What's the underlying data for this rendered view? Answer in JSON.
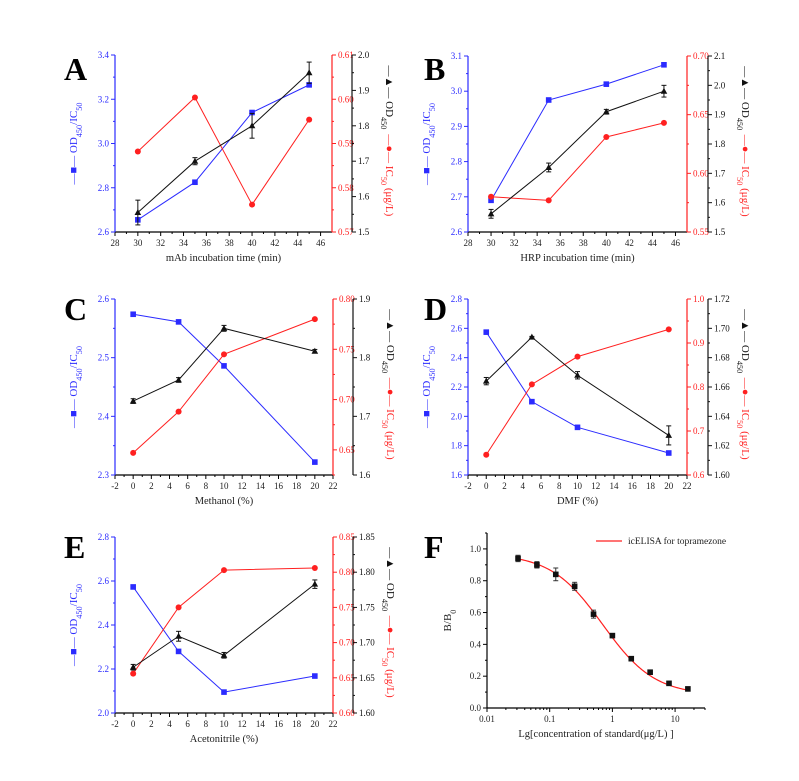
{
  "colors": {
    "left_axis": "#2b2bff",
    "red_axis": "#ff2020",
    "black_axis": "#111111"
  },
  "chart_data": [
    {
      "panel": "A",
      "type": "line",
      "xlabel": "mAb incubation time (min)",
      "xlim": [
        28,
        47
      ],
      "xticks": [
        "28",
        "30",
        "32",
        "34",
        "36",
        "38",
        "40",
        "42",
        "44",
        "46"
      ],
      "x": [
        30,
        35,
        40,
        45
      ],
      "y_left": {
        "label": "—■— OD450/IC50",
        "lim": [
          2.6,
          3.4
        ],
        "ticks": [
          "2.6",
          "2.8",
          "3.0",
          "3.2",
          "3.4"
        ],
        "values": [
          2.655,
          2.825,
          3.14,
          3.265
        ],
        "marker": "square",
        "color": "#2b2bff"
      },
      "y_red": {
        "label": "—●— IC50 (μg/L)",
        "lim": [
          0.57,
          0.61
        ],
        "ticks": [
          "0.57",
          "0.58",
          "0.59",
          "0.60",
          "0.61"
        ],
        "values": [
          0.5882,
          0.6004,
          0.5762,
          0.5954
        ],
        "marker": "circle",
        "color": "#ff2020"
      },
      "y_black": {
        "label": "—▲— OD450",
        "lim": [
          1.5,
          2.0
        ],
        "ticks": [
          "1.5",
          "1.6",
          "1.7",
          "1.8",
          "1.9",
          "2.0"
        ],
        "values": [
          1.555,
          1.7,
          1.8,
          1.95
        ],
        "errors": [
          0.035,
          0.01,
          0.035,
          0.03
        ],
        "marker": "triangle",
        "color": "#111111"
      }
    },
    {
      "panel": "B",
      "type": "line",
      "xlabel": "HRP incubation time (min)",
      "xlim": [
        28,
        47
      ],
      "xticks": [
        "28",
        "30",
        "32",
        "34",
        "36",
        "38",
        "40",
        "42",
        "44",
        "46"
      ],
      "x": [
        30,
        35,
        40,
        45
      ],
      "y_left": {
        "label": "—■— OD450/IC50",
        "lim": [
          2.6,
          3.1
        ],
        "ticks": [
          "2.6",
          "2.7",
          "2.8",
          "2.9",
          "3.0",
          "3.1"
        ],
        "values": [
          2.69,
          2.975,
          3.02,
          3.075
        ],
        "marker": "square",
        "color": "#2b2bff"
      },
      "y_red": {
        "label": "—●— IC50 (μg/L)",
        "lim": [
          0.55,
          0.7
        ],
        "ticks": [
          "0.55",
          "0.60",
          "0.65",
          "0.70"
        ],
        "values": [
          0.58,
          0.577,
          0.631,
          0.643
        ],
        "marker": "circle",
        "color": "#ff2020"
      },
      "y_black": {
        "label": "—▲— OD450",
        "lim": [
          1.5,
          2.1
        ],
        "ticks": [
          "1.5",
          "1.6",
          "1.7",
          "1.8",
          "1.9",
          "2.0",
          "2.1"
        ],
        "values": [
          1.562,
          1.72,
          1.91,
          1.98
        ],
        "errors": [
          0.015,
          0.015,
          0.008,
          0.02
        ],
        "marker": "triangle",
        "color": "#111111"
      }
    },
    {
      "panel": "C",
      "type": "line",
      "xlabel": "Methanol (%)",
      "xlim": [
        -2,
        22
      ],
      "xticks": [
        "-2",
        "0",
        "2",
        "4",
        "6",
        "8",
        "10",
        "12",
        "14",
        "16",
        "18",
        "20",
        "22"
      ],
      "x": [
        0,
        5,
        10,
        20
      ],
      "y_left": {
        "label": "—■— OD450/IC50",
        "lim": [
          2.3,
          2.6
        ],
        "ticks": [
          "2.3",
          "2.4",
          "2.5",
          "2.6"
        ],
        "values": [
          2.574,
          2.561,
          2.486,
          2.322
        ],
        "marker": "square",
        "color": "#2b2bff"
      },
      "y_red": {
        "label": "—●— IC50 (μg/L)",
        "lim": [
          0.625,
          0.8
        ],
        "ticks": [
          "0.65",
          "0.70",
          "0.75",
          "0.80"
        ],
        "values": [
          0.647,
          0.688,
          0.745,
          0.78
        ],
        "marker": "circle",
        "color": "#ff2020"
      },
      "y_black": {
        "label": "—▲— OD450",
        "lim": [
          1.6,
          1.9
        ],
        "ticks": [
          "1.6",
          "1.7",
          "1.8",
          "1.9"
        ],
        "values": [
          1.726,
          1.762,
          1.85,
          1.811
        ],
        "errors": [
          0.004,
          0.004,
          0.005,
          0.003
        ],
        "marker": "triangle",
        "color": "#111111"
      }
    },
    {
      "panel": "D",
      "type": "line",
      "xlabel": "DMF (%)",
      "xlim": [
        -2,
        22
      ],
      "xticks": [
        "-2",
        "0",
        "2",
        "4",
        "6",
        "8",
        "10",
        "12",
        "14",
        "16",
        "18",
        "20",
        "22"
      ],
      "x": [
        0,
        5,
        10,
        20
      ],
      "y_left": {
        "label": "—■— OD450/IC50",
        "lim": [
          1.6,
          2.8
        ],
        "ticks": [
          "1.6",
          "1.8",
          "2.0",
          "2.2",
          "2.4",
          "2.6",
          "2.8"
        ],
        "values": [
          2.574,
          2.1,
          1.925,
          1.75
        ],
        "marker": "square",
        "color": "#2b2bff"
      },
      "y_red": {
        "label": "—●— IC50 (μg/L)",
        "lim": [
          0.6,
          1.0
        ],
        "ticks": [
          "0.6",
          "0.7",
          "0.8",
          "0.9",
          "1.0"
        ],
        "values": [
          0.646,
          0.806,
          0.869,
          0.931
        ],
        "marker": "circle",
        "color": "#ff2020"
      },
      "y_black": {
        "label": "—▲— OD450",
        "lim": [
          1.6,
          1.72
        ],
        "ticks": [
          "1.60",
          "1.62",
          "1.64",
          "1.66",
          "1.68",
          "1.70",
          "1.72"
        ],
        "values": [
          1.664,
          1.694,
          1.668,
          1.627
        ],
        "errors": [
          0.0025,
          0.0005,
          0.0025,
          0.0065
        ],
        "marker": "triangle",
        "color": "#111111"
      }
    },
    {
      "panel": "E",
      "type": "line",
      "xlabel": "Acetonitrile (%)",
      "xlim": [
        -2,
        22
      ],
      "xticks": [
        "-2",
        "0",
        "2",
        "4",
        "6",
        "8",
        "10",
        "12",
        "14",
        "16",
        "18",
        "20",
        "22"
      ],
      "x": [
        0,
        5,
        10,
        20
      ],
      "y_left": {
        "label": "—■— OD450/IC50",
        "lim": [
          2.0,
          2.8
        ],
        "ticks": [
          "2.0",
          "2.2",
          "2.4",
          "2.6",
          "2.8"
        ],
        "values": [
          2.573,
          2.28,
          2.095,
          2.168
        ],
        "marker": "square",
        "color": "#2b2bff"
      },
      "y_red": {
        "label": "—●— IC50 (μg/L)",
        "lim": [
          0.6,
          0.85
        ],
        "ticks": [
          "0.60",
          "0.65",
          "0.70",
          "0.75",
          "0.80",
          "0.85"
        ],
        "values": [
          0.656,
          0.75,
          0.803,
          0.806
        ],
        "marker": "circle",
        "color": "#ff2020"
      },
      "y_black": {
        "label": "—▲— OD450",
        "lim": [
          1.6,
          1.85
        ],
        "ticks": [
          "1.60",
          "1.65",
          "1.70",
          "1.75",
          "1.80",
          "1.85"
        ],
        "values": [
          1.665,
          1.709,
          1.682,
          1.783
        ],
        "errors": [
          0.004,
          0.007,
          0.004,
          0.006
        ],
        "marker": "triangle",
        "color": "#111111"
      }
    },
    {
      "panel": "F",
      "type": "scatter",
      "xlabel": "Lg[concentration of standard(μg/L) ]",
      "ylabel": "B/B0",
      "xscale": "log",
      "xlim": [
        0.01,
        30
      ],
      "xticks": [
        "0.01",
        "0.1",
        "1",
        "10"
      ],
      "ylim": [
        0,
        1.1
      ],
      "yticks": [
        "0.0",
        "0.2",
        "0.4",
        "0.6",
        "0.8",
        "1.0"
      ],
      "x": [
        0.03125,
        0.0625,
        0.125,
        0.25,
        0.5,
        1,
        2,
        4,
        8,
        16
      ],
      "y": [
        0.94,
        0.9,
        0.84,
        0.765,
        0.59,
        0.455,
        0.31,
        0.225,
        0.155,
        0.12
      ],
      "errors": [
        0.02,
        0.02,
        0.04,
        0.025,
        0.025,
        0.008,
        0.008,
        0.006,
        0.006,
        0.006
      ],
      "fit_curve": {
        "name": "icELISA for topramezone",
        "color": "#ff2020"
      },
      "legend": "top-right"
    }
  ]
}
